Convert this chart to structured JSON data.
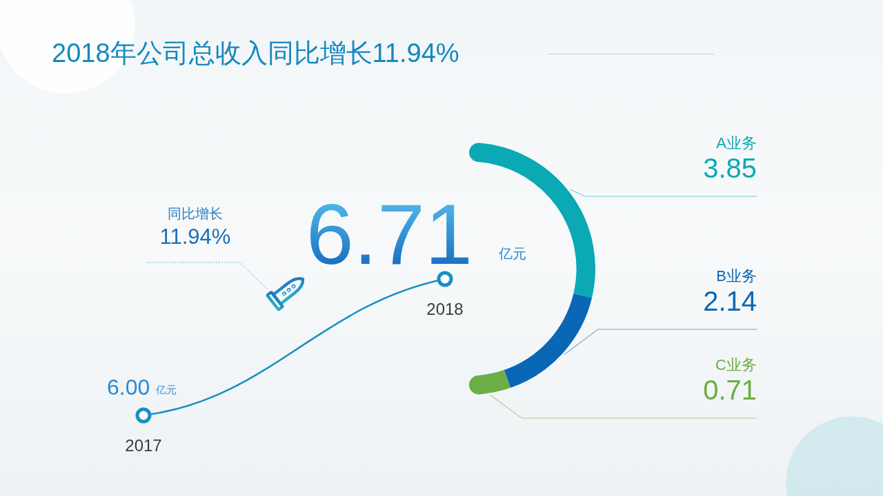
{
  "chart_data": [
    {
      "type": "line",
      "title": "2018年公司总收入同比增长11.94%",
      "categories": [
        "2017",
        "2018"
      ],
      "values": [
        6.0,
        6.71
      ],
      "value_labels": [
        "6.00 亿元",
        "6.71 亿元"
      ],
      "color": "#1590c4",
      "marker": "circle",
      "annotations": [
        "同比增长",
        "11.94%"
      ]
    },
    {
      "type": "donut",
      "categories": [
        "A业务",
        "B业务",
        "C业务"
      ],
      "values": [
        3.85,
        2.14,
        0.71
      ],
      "colors": [
        "#0aa9b4",
        "#0a67b5",
        "#6aae45"
      ],
      "data_labels": true
    }
  ]
}
